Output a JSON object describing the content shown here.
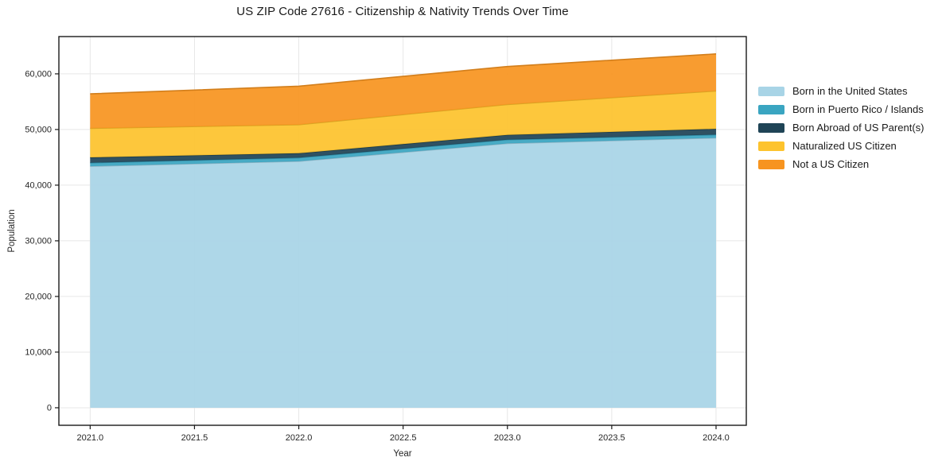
{
  "chart_data": {
    "type": "area",
    "stacked": true,
    "title": "US ZIP Code 27616 - Citizenship & Nativity Trends Over Time",
    "xlabel": "Year",
    "ylabel": "Population",
    "x": [
      2021,
      2022,
      2023,
      2024
    ],
    "series": [
      {
        "name": "Born in the United States",
        "color": "#a8d4e6",
        "values": [
          43400,
          44300,
          47500,
          48500
        ]
      },
      {
        "name": "Born in Puerto Rico / Islands",
        "color": "#3aa5c1",
        "values": [
          620,
          630,
          670,
          570
        ]
      },
      {
        "name": "Born Abroad of US Parent(s)",
        "color": "#1f4456",
        "values": [
          960,
          800,
          860,
          1040
        ]
      },
      {
        "name": "Naturalized US Citizen",
        "color": "#fdc32d",
        "values": [
          5230,
          5140,
          5470,
          6820
        ]
      },
      {
        "name": "Not a US Citizen",
        "color": "#f79420",
        "values": [
          6190,
          6910,
          6820,
          6650
        ]
      }
    ],
    "xlim": [
      2020.85,
      2024.145
    ],
    "ylim": [
      -3150,
      66700
    ],
    "xticks": [
      2021.0,
      2021.5,
      2022.0,
      2022.5,
      2023.0,
      2023.5,
      2024.0
    ],
    "xtick_labels": [
      "2021.0",
      "2021.5",
      "2022.0",
      "2022.5",
      "2023.0",
      "2023.5",
      "2024.0"
    ],
    "yticks": [
      0,
      10000,
      20000,
      30000,
      40000,
      50000,
      60000
    ],
    "ytick_labels": [
      "0",
      "10,000",
      "20,000",
      "30,000",
      "40,000",
      "50,000",
      "60,000"
    ],
    "grid": true,
    "legend_position": "outside-right",
    "colors": {
      "grid": "#e7e7e7",
      "spine": "#1a1a1a",
      "tick_label": "#262626",
      "axis_label": "#262626"
    }
  }
}
